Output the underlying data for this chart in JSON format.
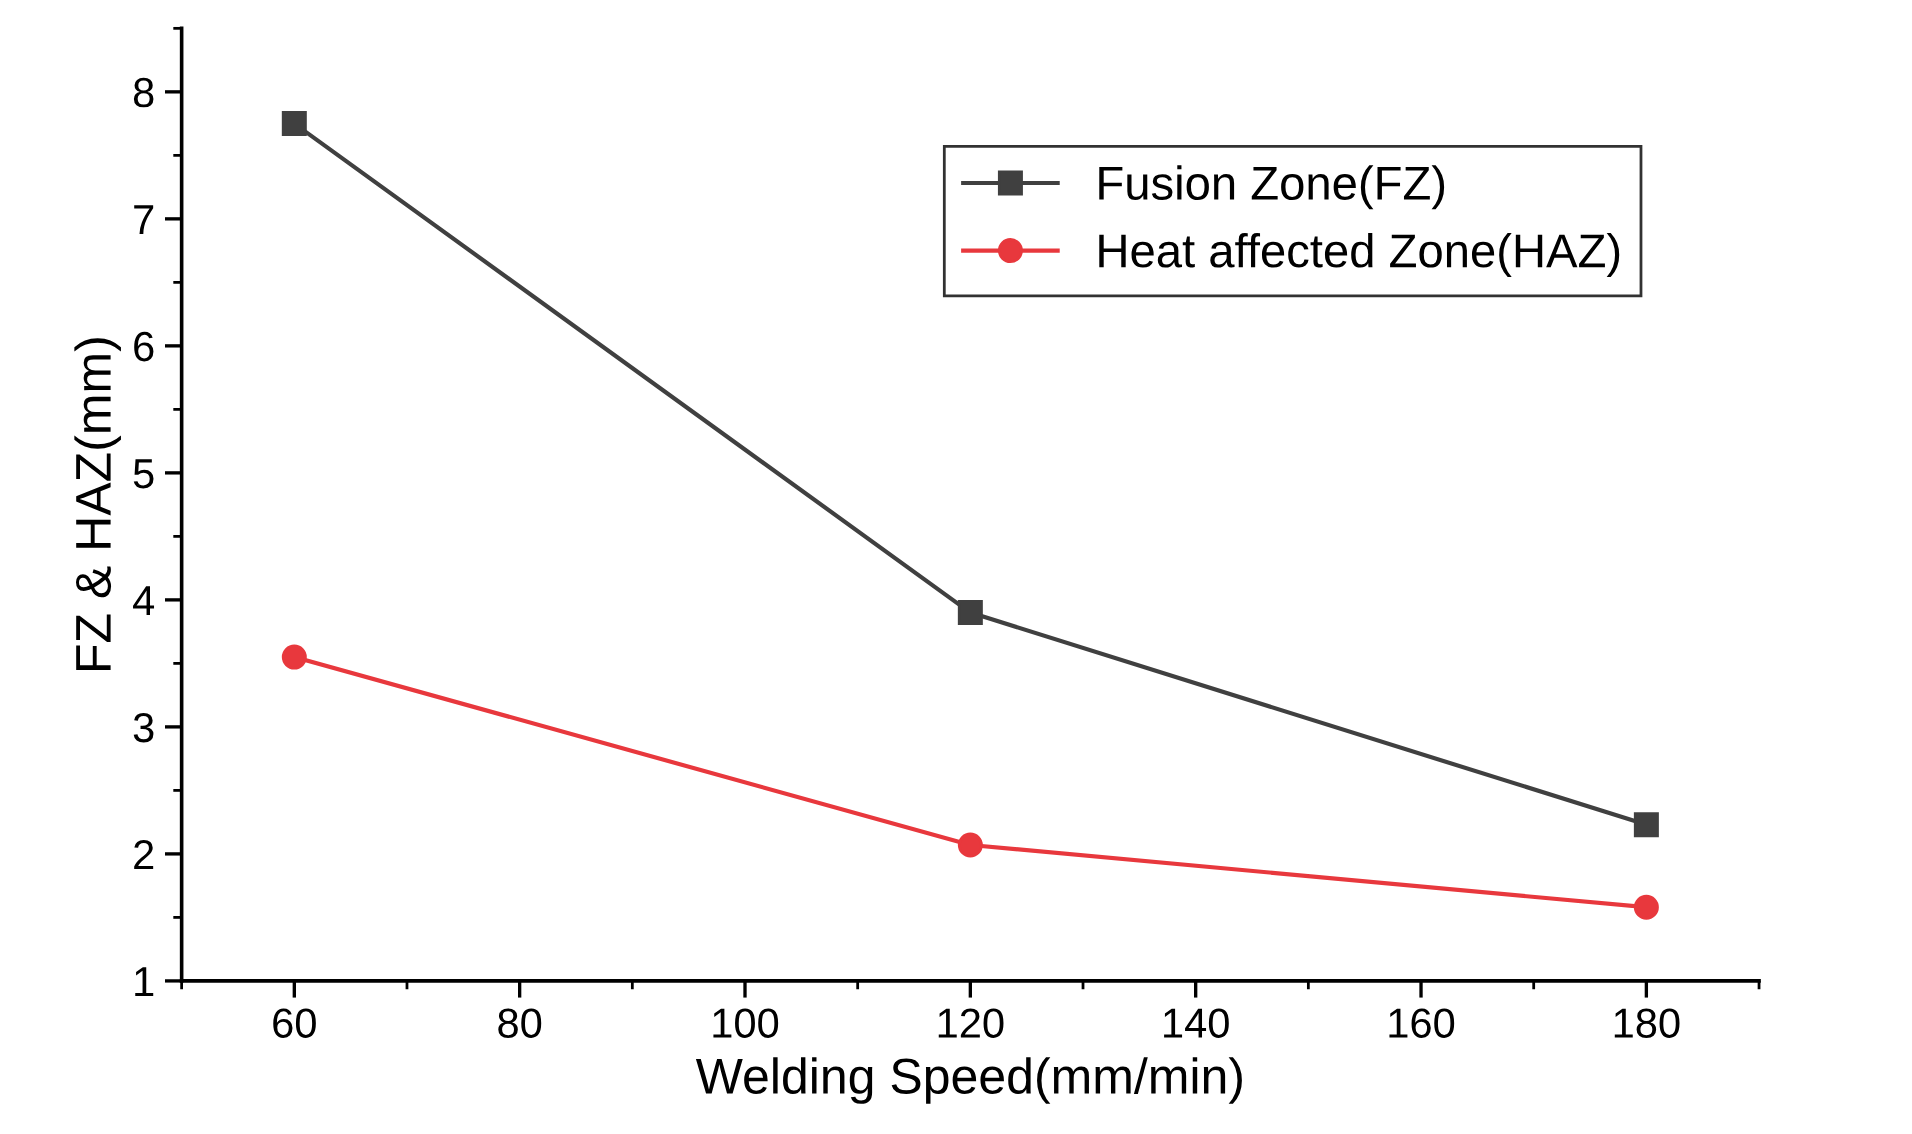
{
  "chart_data": {
    "type": "line",
    "xlabel": "Welding Speed(mm/min)",
    "ylabel": "FZ & HAZ(mm)",
    "x": [
      60,
      120,
      180
    ],
    "series": [
      {
        "name": "Fusion Zone(FZ)",
        "color": "#404040",
        "values": [
          7.75,
          3.9,
          2.23
        ],
        "marker": "square"
      },
      {
        "name": "Heat affected Zone(HAZ)",
        "color": "#e8383d",
        "values": [
          3.55,
          2.07,
          1.58
        ],
        "marker": "circle"
      }
    ],
    "xlim": [
      50,
      190
    ],
    "ylim": [
      1,
      8.5
    ],
    "xticks": [
      60,
      80,
      100,
      120,
      140,
      160,
      180
    ],
    "yticks": [
      1,
      2,
      3,
      4,
      5,
      6,
      7,
      8
    ],
    "grid": false,
    "legend": "top right",
    "line_style": "solid"
  }
}
